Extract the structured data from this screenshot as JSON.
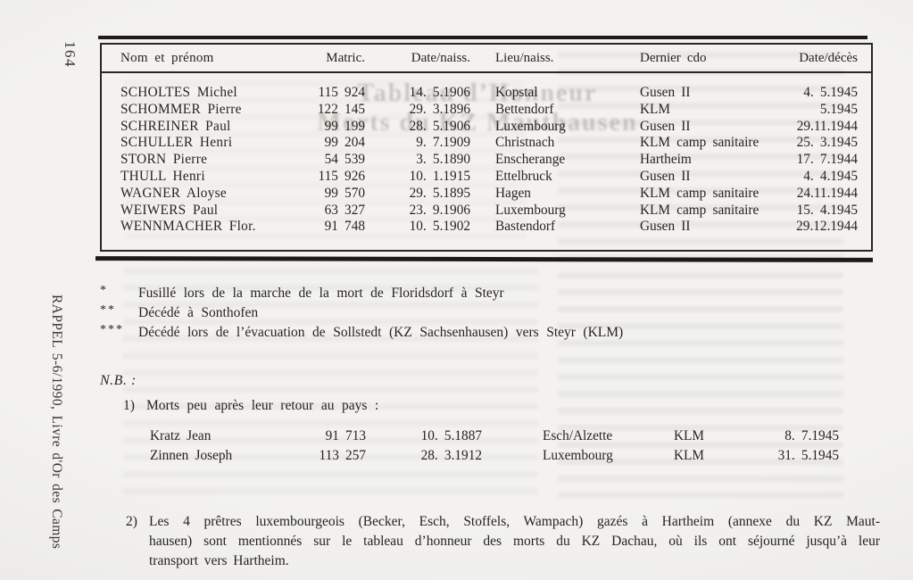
{
  "page": {
    "page_number": "164",
    "sidebar_title": "RAPPEL 5-6/1990, Livre d'Or des Camps"
  },
  "table": {
    "headers": [
      "Nom et prénom",
      "Matric.",
      "Date/naiss.",
      "Lieu/naiss.",
      "Dernier cdo",
      "Date/décès"
    ],
    "rows": [
      [
        "SCHOLTES Michel",
        "115 924",
        "14. 5.1906",
        "Kopstal",
        "Gusen II",
        "4. 5.1945"
      ],
      [
        "SCHOMMER Pierre",
        "122 145",
        "29. 3.1896",
        "Bettendorf",
        "KLM",
        "5.1945"
      ],
      [
        "SCHREINER Paul",
        "99 199",
        "28. 5.1906",
        "Luxembourg",
        "Gusen II",
        "29.11.1944"
      ],
      [
        "SCHULLER Henri",
        "99 204",
        "9. 7.1909",
        "Christnach",
        "KLM camp sanitaire",
        "25. 3.1945"
      ],
      [
        "STORN Pierre",
        "54 539",
        "3. 5.1890",
        "Enscherange",
        "Hartheim",
        "17. 7.1944"
      ],
      [
        "THULL Henri",
        "115 926",
        "10. 1.1915",
        "Ettelbruck",
        "Gusen II",
        "4. 4.1945"
      ],
      [
        "WAGNER Aloyse",
        "99 570",
        "29. 5.1895",
        "Hagen",
        "KLM camp sanitaire",
        "24.11.1944"
      ],
      [
        "WEIWERS Paul",
        "63 327",
        "23. 9.1906",
        "Luxembourg",
        "KLM camp sanitaire",
        "15. 4.1945"
      ],
      [
        "WENNMACHER Flor.",
        "91 748",
        "10. 5.1902",
        "Bastendorf",
        "Gusen II",
        "29.12.1944"
      ]
    ]
  },
  "footnotes": [
    {
      "marker": "*",
      "text": "Fusillé lors de la marche de la mort de Floridsdorf à Steyr"
    },
    {
      "marker": "**",
      "text": "Décédé à Sonthofen"
    },
    {
      "marker": "***",
      "text": "Décédé lors de l’évacuation de Sollstedt (KZ Sachsenhausen) vers Steyr (KLM)"
    }
  ],
  "nb": {
    "label": "N.B. :",
    "item1": {
      "number": "1)",
      "text": "Morts peu après leur retour au pays :",
      "rows": [
        [
          "Kratz Jean",
          "91 713",
          "10. 5.1887",
          "Esch/Alzette",
          "KLM",
          "8. 7.1945"
        ],
        [
          "Zinnen Joseph",
          "113 257",
          "28. 3.1912",
          "Luxembourg",
          "KLM",
          "31. 5.1945"
        ]
      ]
    },
    "item2": {
      "number": "2)",
      "lines": [
        "Les 4 prêtres luxembourgeois (Becker, Esch, Stoffels, Wampach) gazés à Hartheim (annexe du KZ Maut-",
        "hausen) sont mentionnés sur le tableau d’honneur des morts du KZ Dachau, où ils ont séjourné jusqu’à leur",
        "transport vers Hartheim."
      ]
    }
  },
  "ghost": {
    "line1": "Tableau d’Honneur",
    "line2": "Morts du KZ Mauthausen"
  }
}
